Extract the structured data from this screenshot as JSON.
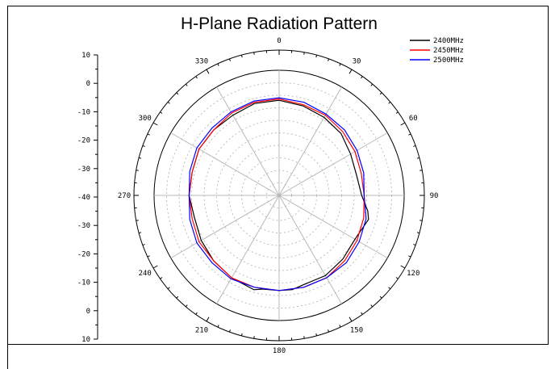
{
  "chart_data": {
    "type": "polar-line",
    "title": "H-Plane Radiation Pattern",
    "angle_labels": [
      "0",
      "30",
      "60",
      "90",
      "120",
      "150",
      "180",
      "210",
      "240",
      "270",
      "300",
      "330"
    ],
    "radial_axis": {
      "labels": [
        "10",
        "0",
        "-10",
        "-20",
        "-30",
        "-40",
        "-30",
        "-20",
        "-10",
        "0",
        "10"
      ],
      "range": [
        -40,
        10
      ],
      "major_step": 10,
      "unit": ""
    },
    "grid": true,
    "legend_position": "top-right",
    "series": [
      {
        "name": "2400MHz",
        "color": "#000000",
        "angles": [
          0,
          15,
          30,
          45,
          60,
          75,
          90,
          100,
          105,
          120,
          135,
          150,
          165,
          172,
          180,
          190,
          195,
          210,
          225,
          240,
          255,
          270,
          285,
          300,
          315,
          330,
          345,
          360
        ],
        "values": [
          -2,
          -3,
          -4,
          -5,
          -7,
          -8,
          -7,
          -4,
          -3,
          -5,
          -4,
          -3,
          -3,
          -2,
          -2,
          -2,
          -1,
          -2,
          -3,
          -4,
          -5,
          -4,
          -4,
          -3,
          -3,
          -3,
          -2,
          -2
        ]
      },
      {
        "name": "2450MHz",
        "color": "#ff0000",
        "angles": [
          0,
          15,
          30,
          45,
          60,
          75,
          90,
          105,
          120,
          135,
          150,
          165,
          180,
          195,
          210,
          225,
          240,
          255,
          270,
          285,
          300,
          315,
          330,
          345,
          360
        ],
        "values": [
          -1.5,
          -2.5,
          -3,
          -4,
          -5,
          -6,
          -6,
          -5,
          -4,
          -3,
          -2,
          -2,
          -2,
          -2,
          -2,
          -3,
          -3,
          -4,
          -4,
          -4,
          -3,
          -3,
          -2,
          -1.5,
          -1.5
        ]
      },
      {
        "name": "2500MHz",
        "color": "#0000ff",
        "angles": [
          0,
          15,
          30,
          45,
          60,
          75,
          90,
          105,
          120,
          135,
          150,
          165,
          180,
          195,
          210,
          225,
          240,
          255,
          270,
          285,
          300,
          315,
          330,
          345,
          360
        ],
        "values": [
          -1,
          -1.5,
          -2.5,
          -3,
          -4,
          -5,
          -6,
          -4,
          -3,
          -2,
          -2,
          -2,
          -2,
          -2,
          -1.5,
          -2,
          -2,
          -3,
          -4,
          -3,
          -2,
          -2,
          -1.5,
          -1,
          -1
        ]
      }
    ]
  }
}
